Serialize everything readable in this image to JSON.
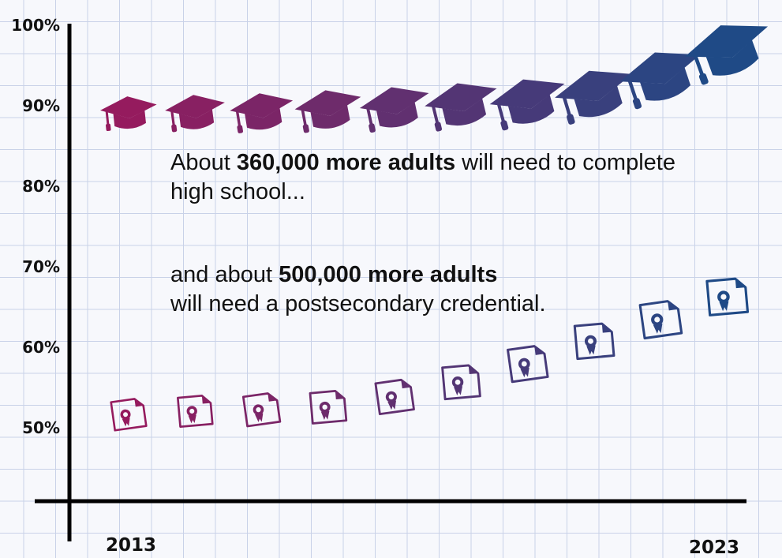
{
  "chart_data": {
    "type": "scatter",
    "x_range": [
      2013,
      2023
    ],
    "x_tick_labels": [
      "2013",
      "2023"
    ],
    "y_ticks": [
      50,
      60,
      70,
      80,
      90,
      100
    ],
    "y_tick_labels": [
      "50%",
      "60%",
      "70%",
      "80%",
      "90%",
      "100%"
    ],
    "series": [
      {
        "marker": "graduation-cap",
        "x": [
          2013,
          2014,
          2015,
          2016,
          2017,
          2018,
          2019,
          2020,
          2021,
          2022
        ],
        "values": [
          89.6,
          89.7,
          89.8,
          90.1,
          90.4,
          90.8,
          91.2,
          92.2,
          94.4,
          97.7
        ]
      },
      {
        "marker": "certificate",
        "x": [
          2013,
          2014,
          2015,
          2016,
          2017,
          2018,
          2019,
          2020,
          2021,
          2022
        ],
        "values": [
          51.7,
          52.1,
          52.3,
          52.6,
          53.9,
          55.7,
          58.0,
          60.8,
          63.5,
          66.3
        ]
      }
    ],
    "color_start": "#951b5e",
    "color_end": "#1f4a86"
  },
  "annotations": {
    "note1": {
      "prefix": "About ",
      "bold": "360,000 more adults",
      "suffix": " will need to complete high school..."
    },
    "note2": {
      "prefix": "and about ",
      "bold": "500,000 more adults",
      "suffix": "will need a postsecondary credential."
    }
  }
}
